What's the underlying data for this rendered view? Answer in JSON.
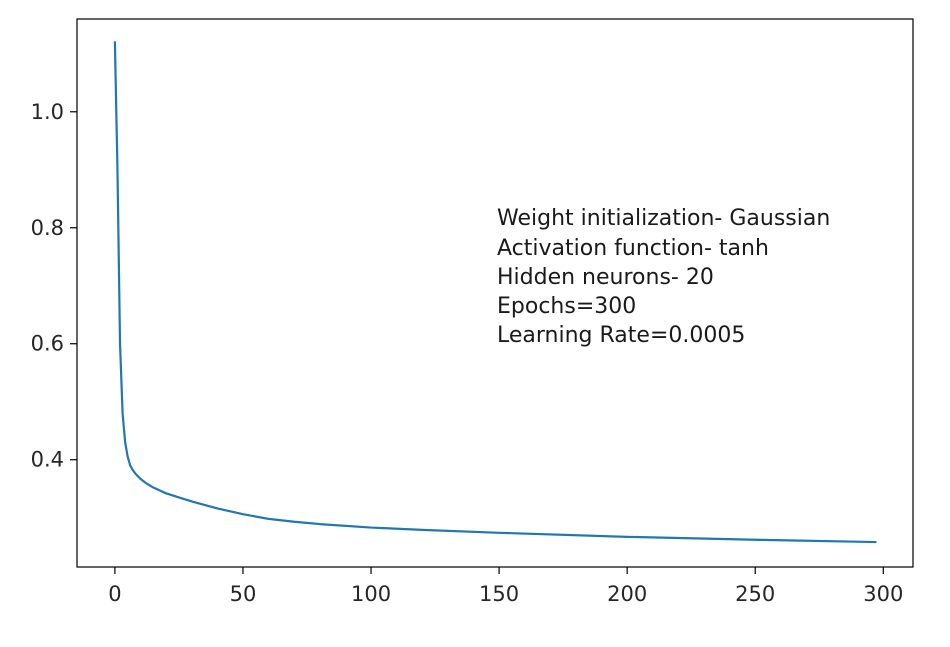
{
  "chart_data": {
    "type": "line",
    "title": "",
    "xlabel": "",
    "ylabel": "",
    "xlim": [
      -14.8,
      311.6
    ],
    "ylim": [
      0.215,
      1.16
    ],
    "xticks": [
      0,
      50,
      100,
      150,
      200,
      250,
      300
    ],
    "yticks": [
      0.4,
      0.6,
      0.8,
      1.0
    ],
    "xtick_labels": [
      "0",
      "50",
      "100",
      "150",
      "200",
      "250",
      "300"
    ],
    "ytick_labels": [
      "0.4",
      "0.6",
      "0.8",
      "1.0"
    ],
    "grid": false,
    "legend": "none",
    "line_color": "#1f77b4",
    "series": [
      {
        "x": [
          0,
          1,
          2,
          3,
          4,
          5,
          6,
          7,
          8,
          10,
          12,
          15,
          20,
          25,
          30,
          40,
          50,
          60,
          70,
          80,
          100,
          120,
          150,
          200,
          250,
          297
        ],
        "y": [
          1.12,
          0.9,
          0.6,
          0.48,
          0.43,
          0.405,
          0.39,
          0.382,
          0.376,
          0.367,
          0.36,
          0.352,
          0.342,
          0.335,
          0.328,
          0.316,
          0.306,
          0.298,
          0.293,
          0.289,
          0.283,
          0.279,
          0.274,
          0.267,
          0.262,
          0.258
        ]
      }
    ],
    "annotations": [
      "Weight initialization- Gaussian",
      "Activation function- tanh",
      "Hidden neurons- 20",
      "Epochs=300",
      "Learning Rate=0.0005"
    ]
  }
}
